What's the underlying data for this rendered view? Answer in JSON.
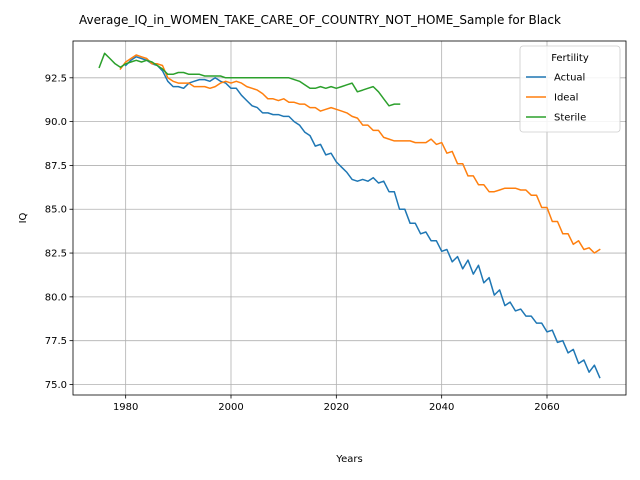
{
  "chart_data": {
    "type": "line",
    "title": "Average_IQ_in_WOMEN_TAKE_CARE_OF_COUNTRY_NOT_HOME_Sample for Black",
    "xlabel": "Years",
    "ylabel": "IQ",
    "xlim": [
      1970,
      2075
    ],
    "ylim": [
      74.4,
      94.6
    ],
    "xticks": [
      1980,
      2000,
      2020,
      2040,
      2060
    ],
    "yticks": [
      75.0,
      77.5,
      80.0,
      82.5,
      85.0,
      87.5,
      90.0,
      92.5
    ],
    "xtick_labels": [
      "1980",
      "2000",
      "2020",
      "2040",
      "2060"
    ],
    "ytick_labels": [
      "75.0",
      "77.5",
      "80.0",
      "82.5",
      "85.0",
      "87.5",
      "90.0",
      "92.5"
    ],
    "grid": true,
    "legend": {
      "title": "Fertility",
      "position": "top-right"
    },
    "series": [
      {
        "name": "Actual",
        "color": "#1f77b4",
        "x": [
          1980,
          1981,
          1982,
          1983,
          1984,
          1985,
          1986,
          1987,
          1988,
          1989,
          1990,
          1991,
          1992,
          1993,
          1994,
          1995,
          1996,
          1997,
          1998,
          1999,
          2000,
          2001,
          2002,
          2003,
          2004,
          2005,
          2006,
          2007,
          2008,
          2009,
          2010,
          2011,
          2012,
          2013,
          2014,
          2015,
          2016,
          2017,
          2018,
          2019,
          2020,
          2021,
          2022,
          2023,
          2024,
          2025,
          2026,
          2027,
          2028,
          2029,
          2030,
          2031,
          2032,
          2033,
          2034,
          2035,
          2036,
          2037,
          2038,
          2039,
          2040,
          2041,
          2042,
          2043,
          2044,
          2045,
          2046,
          2047,
          2048,
          2049,
          2050,
          2051,
          2052,
          2053,
          2054,
          2055,
          2056,
          2057,
          2058,
          2059,
          2060,
          2061,
          2062,
          2063,
          2064,
          2065,
          2066,
          2067,
          2068,
          2069,
          2070
        ],
        "values": [
          93.2,
          93.5,
          93.7,
          93.6,
          93.5,
          93.3,
          93.2,
          92.9,
          92.3,
          92.0,
          92.0,
          91.9,
          92.2,
          92.3,
          92.4,
          92.4,
          92.3,
          92.5,
          92.3,
          92.2,
          91.9,
          91.9,
          91.5,
          91.2,
          90.9,
          90.8,
          90.5,
          90.5,
          90.4,
          90.4,
          90.3,
          90.3,
          90.0,
          89.8,
          89.4,
          89.2,
          88.6,
          88.7,
          88.1,
          88.2,
          87.7,
          87.4,
          87.1,
          86.7,
          86.6,
          86.7,
          86.6,
          86.8,
          86.5,
          86.6,
          86.0,
          86.0,
          85.0,
          85.0,
          84.2,
          84.2,
          83.6,
          83.7,
          83.2,
          83.2,
          82.6,
          82.7,
          82.0,
          82.3,
          81.6,
          82.1,
          81.3,
          81.8,
          80.8,
          81.1,
          80.1,
          80.4,
          79.5,
          79.7,
          79.2,
          79.3,
          78.9,
          78.9,
          78.5,
          78.5,
          78.0,
          78.1,
          77.4,
          77.5,
          76.8,
          77.0,
          76.2,
          76.4,
          75.7,
          76.1,
          75.4
        ]
      },
      {
        "name": "Ideal",
        "color": "#ff7f0e",
        "x": [
          1979,
          1980,
          1981,
          1982,
          1983,
          1984,
          1985,
          1986,
          1987,
          1988,
          1989,
          1990,
          1991,
          1992,
          1993,
          1994,
          1995,
          1996,
          1997,
          1998,
          1999,
          2000,
          2001,
          2002,
          2003,
          2004,
          2005,
          2006,
          2007,
          2008,
          2009,
          2010,
          2011,
          2012,
          2013,
          2014,
          2015,
          2016,
          2017,
          2018,
          2019,
          2020,
          2021,
          2022,
          2023,
          2024,
          2025,
          2026,
          2027,
          2028,
          2029,
          2030,
          2031,
          2032,
          2033,
          2034,
          2035,
          2036,
          2037,
          2038,
          2039,
          2040,
          2041,
          2042,
          2043,
          2044,
          2045,
          2046,
          2047,
          2048,
          2049,
          2050,
          2051,
          2052,
          2053,
          2054,
          2055,
          2056,
          2057,
          2058,
          2059,
          2060,
          2061,
          2062,
          2063,
          2064,
          2065,
          2066,
          2067,
          2068,
          2069,
          2070
        ],
        "values": [
          93.0,
          93.4,
          93.6,
          93.8,
          93.7,
          93.6,
          93.3,
          93.3,
          93.2,
          92.5,
          92.3,
          92.2,
          92.2,
          92.2,
          92.0,
          92.0,
          92.0,
          91.9,
          92.0,
          92.2,
          92.3,
          92.2,
          92.3,
          92.2,
          92.0,
          91.9,
          91.8,
          91.6,
          91.3,
          91.3,
          91.2,
          91.3,
          91.1,
          91.1,
          91.0,
          91.0,
          90.8,
          90.8,
          90.6,
          90.7,
          90.8,
          90.7,
          90.6,
          90.5,
          90.3,
          90.2,
          89.8,
          89.8,
          89.5,
          89.5,
          89.1,
          89.0,
          88.9,
          88.9,
          88.9,
          88.9,
          88.8,
          88.8,
          88.8,
          89.0,
          88.7,
          88.8,
          88.2,
          88.3,
          87.6,
          87.6,
          86.9,
          86.9,
          86.4,
          86.4,
          86.0,
          86.0,
          86.1,
          86.2,
          86.2,
          86.2,
          86.1,
          86.1,
          85.8,
          85.8,
          85.1,
          85.1,
          84.3,
          84.3,
          83.6,
          83.6,
          83.0,
          83.2,
          82.7,
          82.8,
          82.5,
          82.7
        ]
      },
      {
        "name": "Sterile",
        "color": "#2ca02c",
        "x": [
          1975,
          1976,
          1977,
          1978,
          1979,
          1980,
          1981,
          1982,
          1983,
          1984,
          1985,
          1986,
          1987,
          1988,
          1989,
          1990,
          1991,
          1992,
          1993,
          1994,
          1995,
          1996,
          1997,
          1998,
          1999,
          2000,
          2001,
          2002,
          2003,
          2004,
          2005,
          2006,
          2007,
          2008,
          2009,
          2010,
          2011,
          2012,
          2013,
          2014,
          2015,
          2016,
          2017,
          2018,
          2019,
          2020,
          2021,
          2022,
          2023,
          2024,
          2025,
          2026,
          2027,
          2028,
          2029,
          2030,
          2031,
          2032
        ],
        "values": [
          93.1,
          93.9,
          93.6,
          93.3,
          93.1,
          93.3,
          93.4,
          93.5,
          93.4,
          93.5,
          93.4,
          93.2,
          93.0,
          92.7,
          92.7,
          92.8,
          92.8,
          92.7,
          92.7,
          92.7,
          92.6,
          92.6,
          92.6,
          92.6,
          92.5,
          92.5,
          92.5,
          92.5,
          92.5,
          92.5,
          92.5,
          92.5,
          92.5,
          92.5,
          92.5,
          92.5,
          92.5,
          92.4,
          92.3,
          92.1,
          91.9,
          91.9,
          92.0,
          91.9,
          92.0,
          91.9,
          92.0,
          92.1,
          92.2,
          91.7,
          91.8,
          91.9,
          92.0,
          91.7,
          91.3,
          90.9,
          91.0,
          91.0
        ]
      }
    ]
  }
}
